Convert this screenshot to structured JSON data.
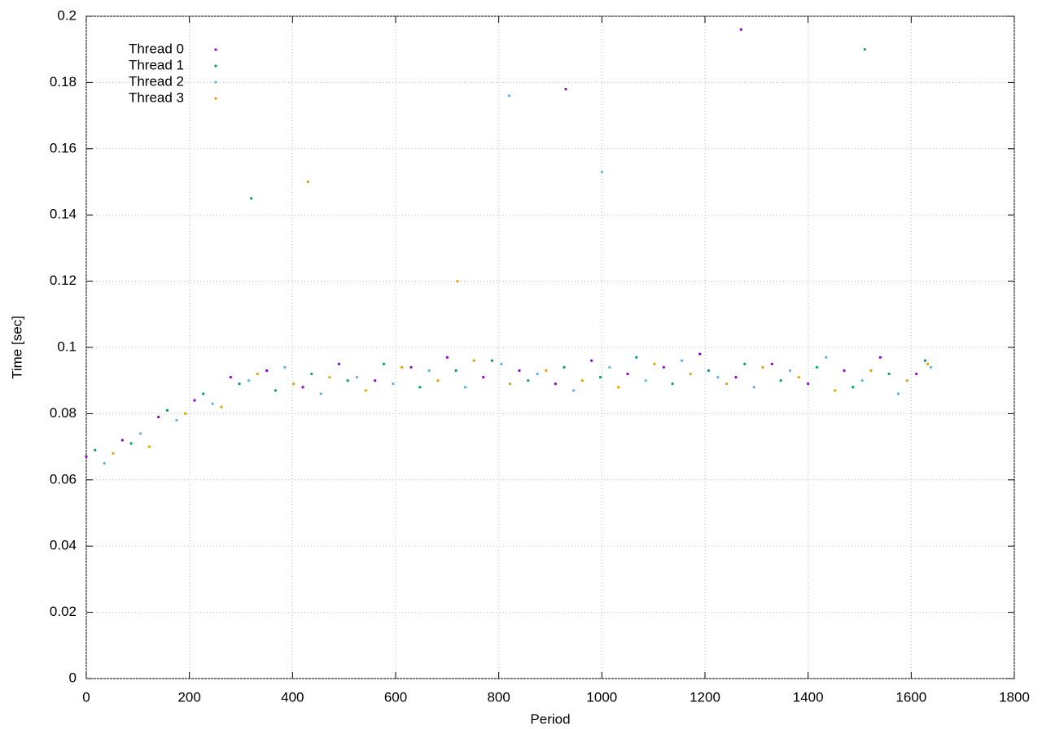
{
  "chart_data": {
    "type": "scatter",
    "xlabel": "Period",
    "ylabel": "Time [sec]",
    "xlim": [
      0,
      1800
    ],
    "ylim": [
      0,
      0.2
    ],
    "xticks": [
      0,
      200,
      400,
      600,
      800,
      1000,
      1200,
      1400,
      1600,
      1800
    ],
    "yticks": [
      0,
      0.02,
      0.04,
      0.06,
      0.08,
      0.1,
      0.12,
      0.14,
      0.16,
      0.18,
      0.2
    ],
    "grid": true,
    "legend": "top-left",
    "series": [
      {
        "name": "Thread 0",
        "color": "#9400d3",
        "x": [
          0,
          70,
          140,
          210,
          280,
          350,
          420,
          490,
          560,
          630,
          700,
          770,
          840,
          910,
          980,
          1050,
          1120,
          1190,
          1260,
          1330,
          1400,
          1470,
          1540,
          1610,
          930,
          1270
        ],
        "values": [
          0.067,
          0.072,
          0.079,
          0.084,
          0.091,
          0.093,
          0.088,
          0.095,
          0.09,
          0.094,
          0.097,
          0.091,
          0.093,
          0.089,
          0.096,
          0.092,
          0.094,
          0.098,
          0.091,
          0.095,
          0.089,
          0.093,
          0.097,
          0.092,
          0.178,
          0.196
        ]
      },
      {
        "name": "Thread 1",
        "color": "#009e73",
        "x": [
          17,
          87,
          157,
          227,
          297,
          367,
          437,
          507,
          577,
          647,
          717,
          787,
          857,
          927,
          997,
          1067,
          1137,
          1207,
          1277,
          1347,
          1417,
          1487,
          1557,
          1627,
          320,
          1510
        ],
        "values": [
          0.069,
          0.071,
          0.081,
          0.086,
          0.089,
          0.087,
          0.092,
          0.09,
          0.095,
          0.088,
          0.093,
          0.096,
          0.09,
          0.094,
          0.091,
          0.097,
          0.089,
          0.093,
          0.095,
          0.09,
          0.094,
          0.088,
          0.092,
          0.096,
          0.145,
          0.19
        ]
      },
      {
        "name": "Thread 2",
        "color": "#56b4e9",
        "x": [
          35,
          105,
          175,
          245,
          315,
          385,
          455,
          525,
          595,
          665,
          735,
          805,
          875,
          945,
          1015,
          1085,
          1155,
          1225,
          1295,
          1365,
          1435,
          1505,
          1575,
          1638,
          820,
          1000
        ],
        "values": [
          0.065,
          0.074,
          0.078,
          0.083,
          0.09,
          0.094,
          0.086,
          0.091,
          0.089,
          0.093,
          0.088,
          0.095,
          0.092,
          0.087,
          0.094,
          0.09,
          0.096,
          0.091,
          0.088,
          0.093,
          0.097,
          0.09,
          0.086,
          0.094,
          0.176,
          0.153
        ]
      },
      {
        "name": "Thread 3",
        "color": "#e69f00",
        "x": [
          52,
          122,
          192,
          262,
          332,
          402,
          472,
          542,
          612,
          682,
          752,
          822,
          892,
          962,
          1032,
          1102,
          1172,
          1242,
          1312,
          1382,
          1452,
          1522,
          1592,
          1632,
          430,
          720
        ],
        "values": [
          0.068,
          0.07,
          0.08,
          0.082,
          0.092,
          0.089,
          0.091,
          0.087,
          0.094,
          0.09,
          0.096,
          0.089,
          0.093,
          0.09,
          0.088,
          0.095,
          0.092,
          0.089,
          0.094,
          0.091,
          0.087,
          0.093,
          0.09,
          0.095,
          0.15,
          0.12
        ]
      }
    ]
  }
}
